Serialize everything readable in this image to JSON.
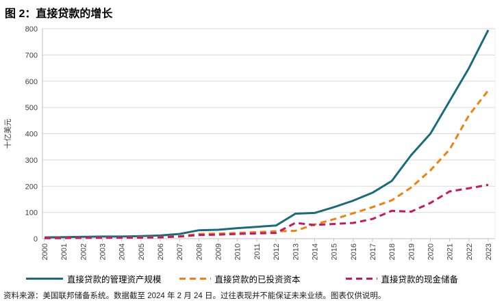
{
  "title": "图 2：直接贷款的增长",
  "footer": "资料来源：美国联邦储备系统。数据截至 2024 年 2 月 24 日。过往表现并不能保证未来业绩。图表仅供说明。",
  "colors": {
    "aum_teal": "#1a6b7d",
    "invested_orange": "#ee8211",
    "dry_powder_pink": "#c41a5f",
    "gridline": "#d9d9d9",
    "axis": "#bfbfbf",
    "tick_text": "#3f3f3f"
  },
  "chart_data": {
    "type": "line",
    "title": "图 2：直接贷款的增长",
    "ylabel": "十亿美元",
    "xlabel": "",
    "ylim": [
      0,
      800
    ],
    "ytick_step": 100,
    "yticks": [
      0,
      100,
      200,
      300,
      400,
      500,
      600,
      700,
      800
    ],
    "grid": true,
    "legend_position": "bottom",
    "x": [
      2000,
      2001,
      2002,
      2003,
      2004,
      2005,
      2006,
      2007,
      2008,
      2009,
      2010,
      2011,
      2012,
      2013,
      2014,
      2015,
      2016,
      2017,
      2018,
      2019,
      2020,
      2021,
      2022,
      2023
    ],
    "series": [
      {
        "name": "直接贷款的管理资产规模",
        "color": "#1a6b7d",
        "style": "solid",
        "values": [
          5,
          6,
          7,
          8,
          8,
          10,
          12,
          18,
          32,
          34,
          40,
          45,
          50,
          95,
          98,
          120,
          145,
          175,
          220,
          318,
          400,
          525,
          650,
          795
        ]
      },
      {
        "name": "直接贷款的已投资资本",
        "color": "#ee8211",
        "style": "dashed",
        "values": [
          2,
          3,
          3,
          4,
          4,
          5,
          6,
          9,
          18,
          19,
          22,
          25,
          28,
          30,
          54,
          74,
          97,
          120,
          146,
          195,
          260,
          340,
          470,
          565
        ]
      },
      {
        "name": "直接贷款的现金储备",
        "color": "#c41a5f",
        "style": "dashed",
        "values": [
          2,
          2,
          3,
          3,
          4,
          4,
          5,
          8,
          14,
          15,
          18,
          20,
          22,
          60,
          52,
          56,
          60,
          75,
          106,
          103,
          136,
          180,
          192,
          205
        ]
      }
    ]
  }
}
